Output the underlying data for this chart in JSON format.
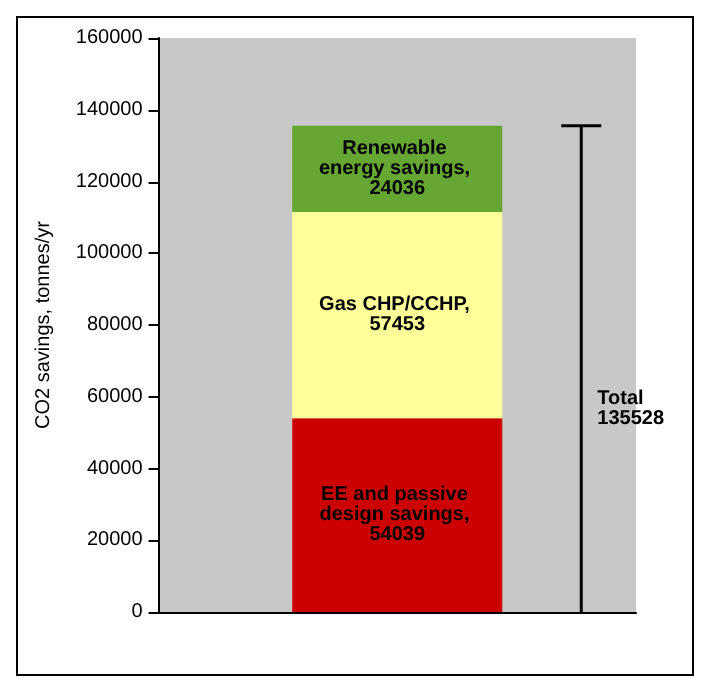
{
  "chart_data": {
    "type": "bar",
    "ylabel": "CO2 savings, tonnes/yr",
    "categories": [
      null
    ],
    "stacked": true,
    "series": [
      {
        "color": "#cc0000",
        "values": [
          54039
        ],
        "value_labels": [
          "EE and passive design savings, 54039"
        ]
      },
      {
        "color": "#ffff99",
        "values": [
          57453
        ],
        "value_labels": [
          "Gas CHP/CCHP, 57453"
        ]
      },
      {
        "color": "#66a632",
        "values": [
          24036
        ],
        "value_labels": [
          "Renewable energy savings, 24036"
        ]
      }
    ],
    "annotations": [
      "Total 135528"
    ],
    "ylim": [
      0,
      160000
    ],
    "yticks": [
      0,
      20000,
      40000,
      60000,
      80000,
      100000,
      120000,
      140000,
      160000
    ],
    "grid": false
  }
}
